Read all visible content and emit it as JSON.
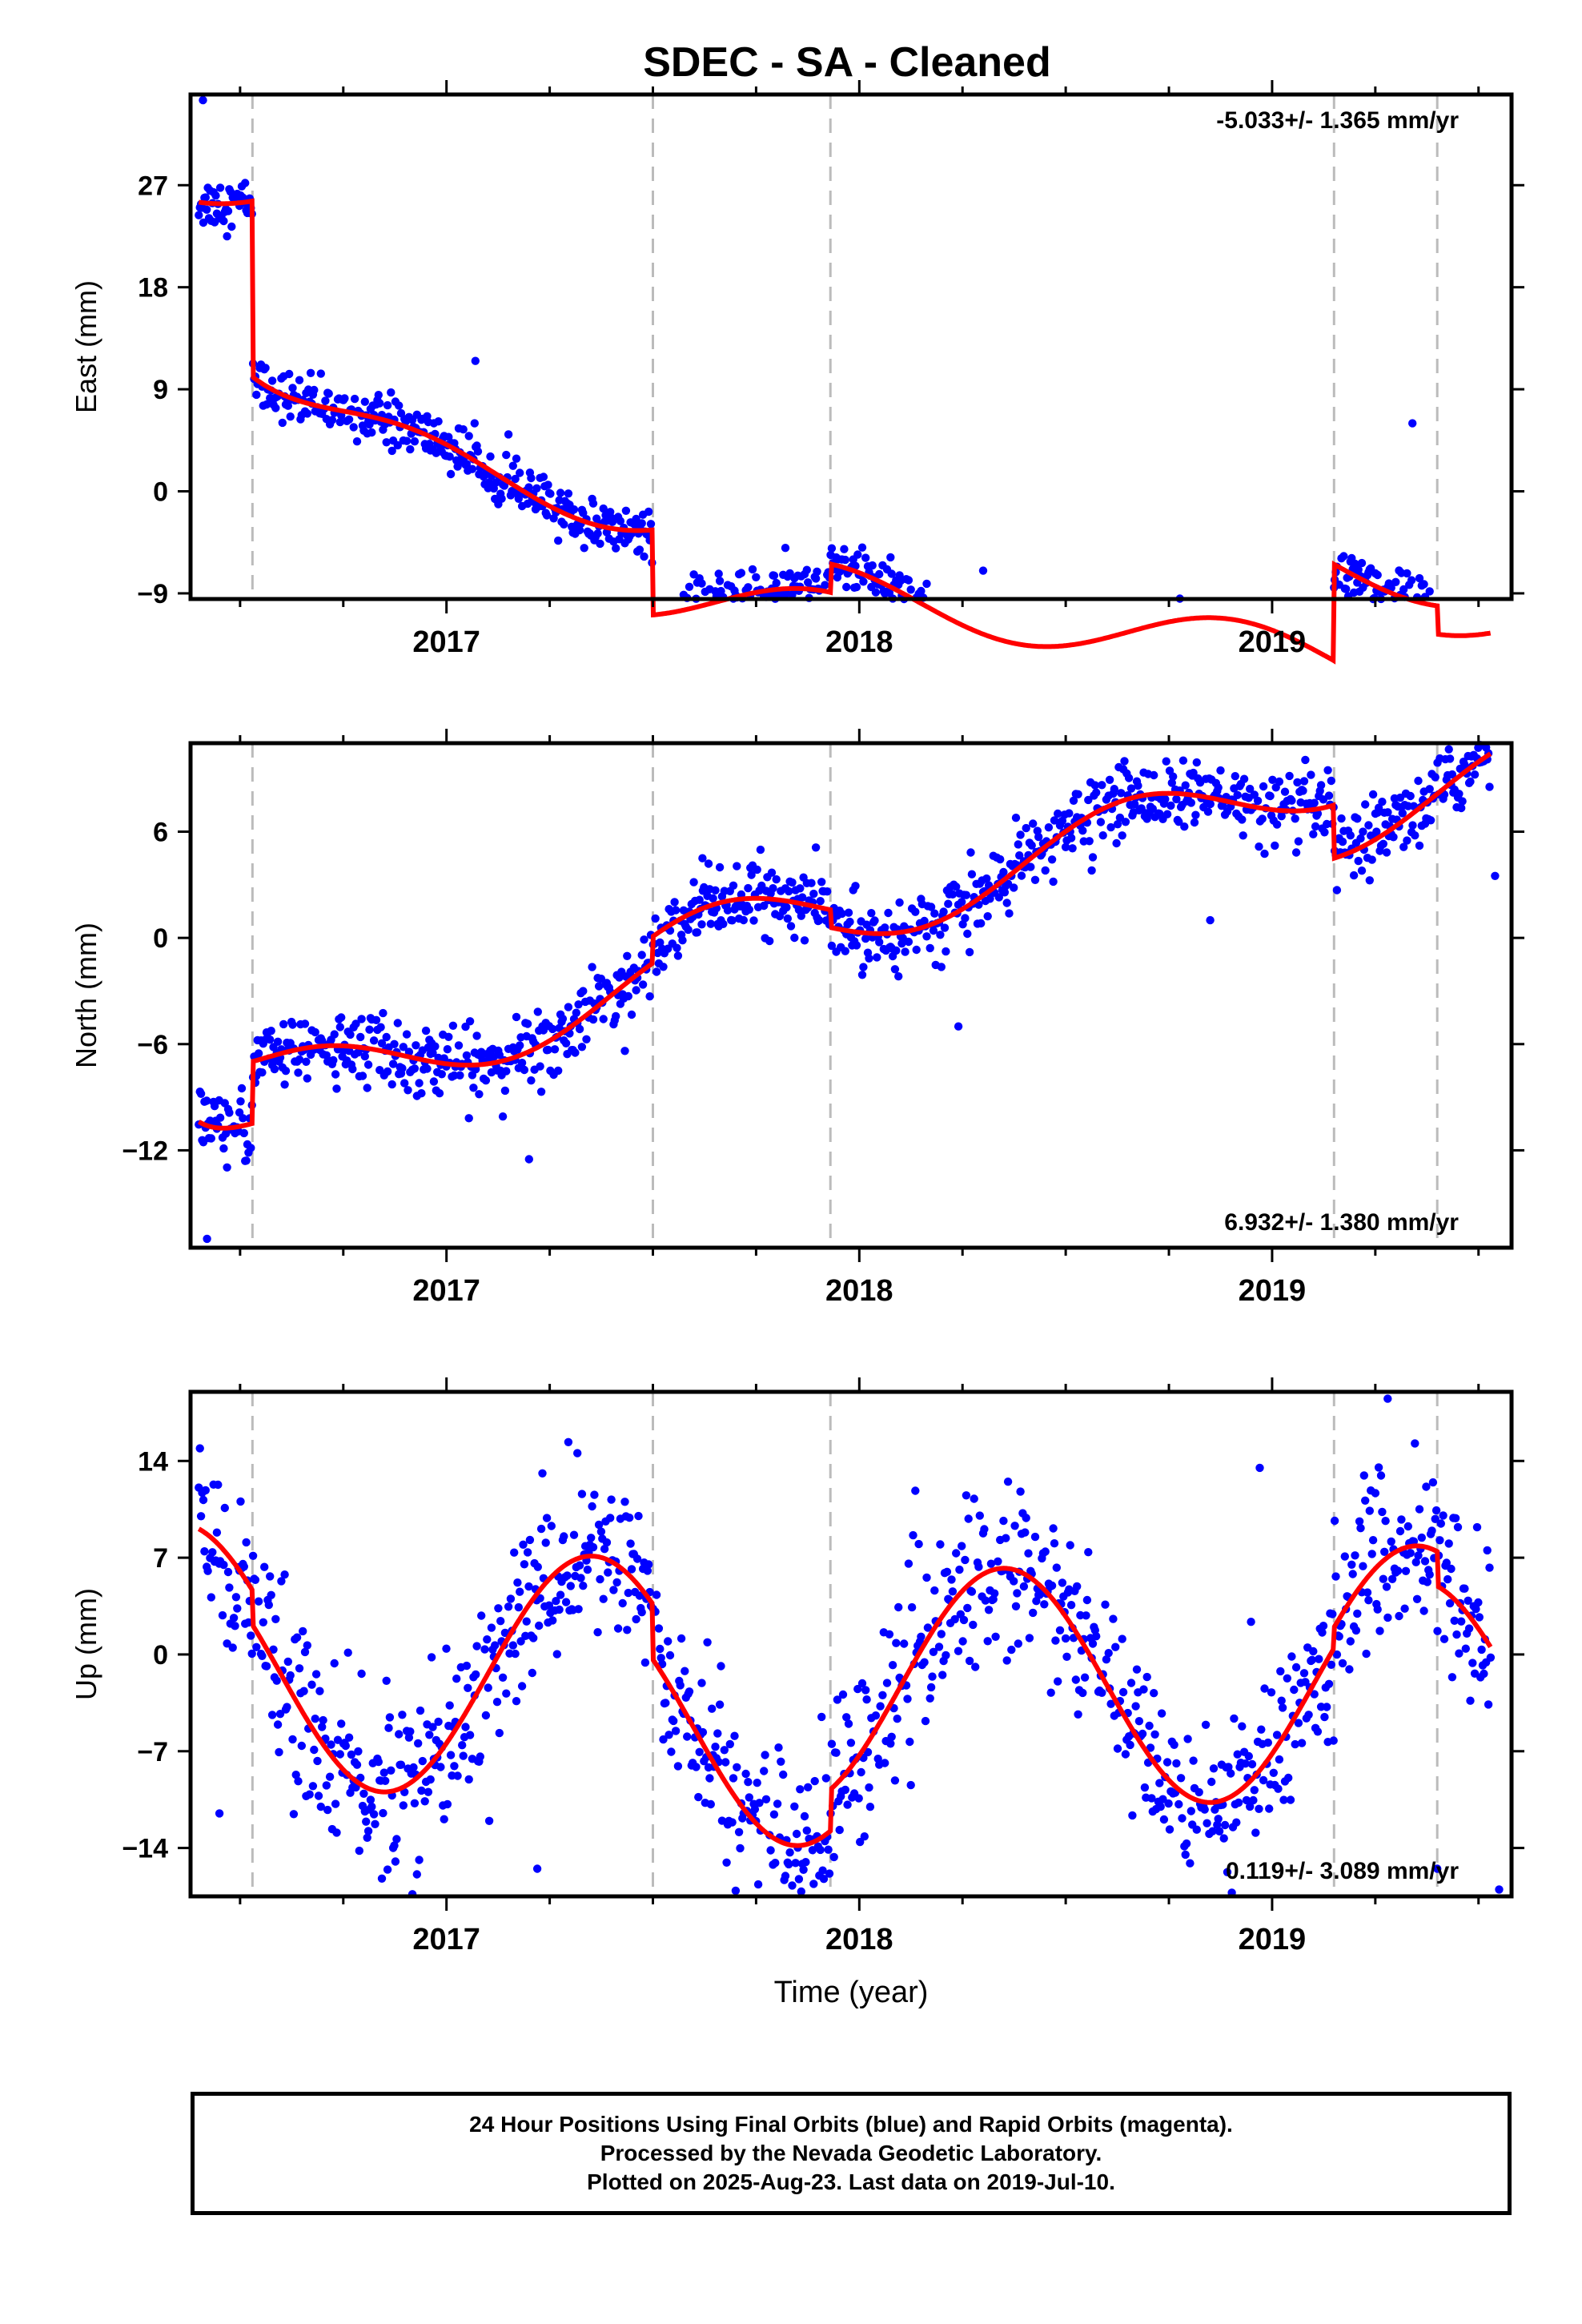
{
  "chart_data": [
    {
      "type": "scatter",
      "title": "SDEC  - SA - Cleaned",
      "ylabel": "East (mm)",
      "xlabel": "",
      "rate_label": "-5.033+/- 1.365 mm/yr",
      "rate_position": "top-right",
      "xlim": [
        2016.38,
        2019.58
      ],
      "ylim": [
        -9.5,
        35
      ],
      "yticks": [
        -9,
        0,
        9,
        18,
        27
      ],
      "xticks": [
        2017,
        2018,
        2019
      ],
      "grid": false,
      "event_lines": [
        2016.53,
        2017.5,
        2017.93,
        2019.15,
        2019.4
      ],
      "model_trend": {
        "start": 28.0,
        "rate": -5.033,
        "annual_amp": 2.4,
        "annual_phase": 0.65,
        "offsets": [
          [
            2016.53,
            -15.5
          ],
          [
            2017.5,
            -7.5
          ],
          [
            2017.93,
            2.5
          ],
          [
            2019.15,
            8.5
          ],
          [
            2019.4,
            -2.5
          ]
        ],
        "decay": [
          2016.53,
          -8.5,
          0.25
        ]
      },
      "noise_sd": 1.1,
      "outliers": [
        [
          2016.41,
          34.5
        ],
        [
          2017.07,
          11.5
        ],
        [
          2017.14,
          0.5
        ],
        [
          2018.3,
          -7.0
        ],
        [
          2019.15,
          -8.5
        ],
        [
          2019.34,
          6.0
        ]
      ],
      "series": [
        {
          "name": "Final Orbits",
          "color": "#0000ff",
          "kind": "points"
        },
        {
          "name": "Model",
          "color": "#ff0000",
          "kind": "line"
        }
      ]
    },
    {
      "type": "scatter",
      "ylabel": "North (mm)",
      "xlabel": "",
      "rate_label": "6.932+/- 1.380 mm/yr",
      "rate_position": "bottom-right",
      "xlim": [
        2016.38,
        2019.58
      ],
      "ylim": [
        -17.5,
        11
      ],
      "yticks": [
        -12,
        -6,
        0,
        6
      ],
      "xticks": [
        2017,
        2018,
        2019
      ],
      "grid": false,
      "event_lines": [
        2016.53,
        2017.5,
        2017.93,
        2019.15,
        2019.4
      ],
      "model_trend": {
        "start": -9.8,
        "rate": 6.932,
        "annual_amp": 1.9,
        "annual_phase": 0.4,
        "offsets": [
          [
            2016.53,
            3.5
          ],
          [
            2017.5,
            1.5
          ],
          [
            2017.93,
            -1.0
          ],
          [
            2019.15,
            -3.0
          ],
          [
            2019.4,
            0.0
          ]
        ],
        "decay": [
          2016.38,
          -4.0,
          0.1
        ]
      },
      "noise_sd": 1.0,
      "outliers": [
        [
          2016.42,
          -17.0
        ],
        [
          2017.62,
          4.5
        ],
        [
          2017.2,
          -12.5
        ],
        [
          2018.24,
          -5.0
        ],
        [
          2018.85,
          1.0
        ],
        [
          2019.54,
          3.5
        ]
      ],
      "series": [
        {
          "name": "Final Orbits",
          "color": "#0000ff",
          "kind": "points"
        },
        {
          "name": "Model",
          "color": "#ff0000",
          "kind": "line"
        }
      ]
    },
    {
      "type": "scatter",
      "ylabel": "Up (mm)",
      "xlabel": "Time (year)",
      "rate_label": "0.119+/- 3.089 mm/yr",
      "rate_position": "bottom-right",
      "xlim": [
        2016.38,
        2019.58
      ],
      "ylim": [
        -17.5,
        19
      ],
      "yticks": [
        -14,
        -7,
        0,
        7,
        14
      ],
      "xticks": [
        2017,
        2018,
        2019
      ],
      "grid": false,
      "event_lines": [
        2016.53,
        2017.5,
        2017.93,
        2019.15,
        2019.4
      ],
      "model_trend": {
        "start": 1.0,
        "rate": 0.119,
        "annual_amp": 8.5,
        "annual_phase": 0.1,
        "offsets": [
          [
            2016.53,
            -2.5
          ],
          [
            2017.5,
            -4.0
          ],
          [
            2017.93,
            3.0
          ],
          [
            2019.15,
            1.5
          ],
          [
            2019.4,
            -2.5
          ]
        ],
        "decay": [
          2016.38,
          0,
          0.1
        ]
      },
      "noise_sd": 3.2,
      "outliers": [
        [
          2016.45,
          -11.5
        ],
        [
          2017.22,
          -15.5
        ],
        [
          2018.97,
          13.5
        ],
        [
          2019.28,
          18.5
        ],
        [
          2019.4,
          -15.5
        ],
        [
          2019.55,
          -17.0
        ]
      ],
      "series": [
        {
          "name": "Final Orbits",
          "color": "#0000ff",
          "kind": "points"
        },
        {
          "name": "Model",
          "color": "#ff0000",
          "kind": "line"
        }
      ]
    }
  ],
  "footer": {
    "line1": "24 Hour Positions Using Final Orbits (blue) and Rapid Orbits (magenta).",
    "line2": "Processed by the Nevada Geodetic Laboratory.",
    "line3": "Plotted on 2025-Aug-23. Last data on 2019-Jul-10."
  }
}
